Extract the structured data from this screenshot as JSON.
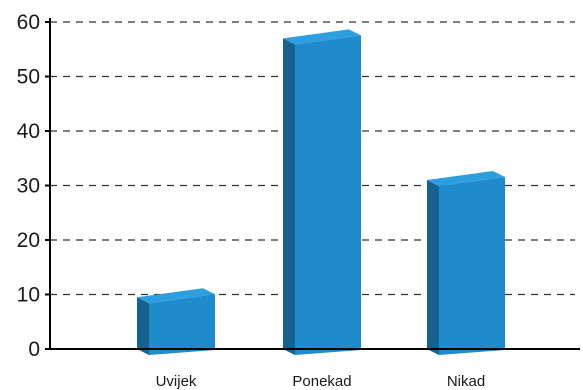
{
  "chart_data": {
    "type": "bar",
    "title": "",
    "xlabel": "",
    "ylabel": "",
    "categories": [
      "Uvijek",
      "Ponekad",
      "Nikad"
    ],
    "values": [
      9.5,
      57,
      31
    ],
    "ylim": [
      0,
      60
    ],
    "yticks": [
      0,
      10,
      20,
      30,
      40,
      50,
      60
    ],
    "grid": true,
    "grid_style": "dashed",
    "bar_style": "3d",
    "colors": {
      "bar_front": "#1f8bcd",
      "bar_side": "#16618f",
      "bar_top": "#2d9ee0",
      "grid": "#333333",
      "axis": "#000000"
    }
  }
}
